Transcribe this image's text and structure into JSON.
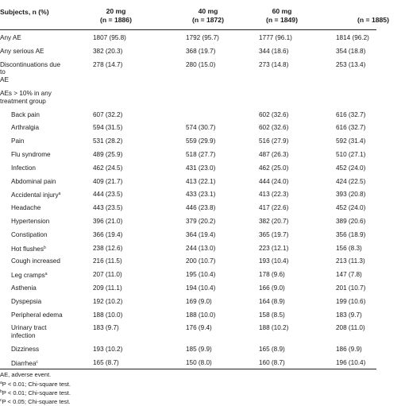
{
  "header": {
    "subjects_label": "Subjects, n (%)",
    "columns": [
      {
        "dose": "20 mg",
        "n": "(n = 1886)"
      },
      {
        "dose": "40 mg",
        "n": "(n = 1872)"
      },
      {
        "dose": "60 mg",
        "n": "(n = 1849)"
      },
      {
        "dose": "",
        "n": "(n = 1885)"
      }
    ]
  },
  "summary_rows": [
    {
      "label": "Any AE",
      "values": [
        "1807 (95.8)",
        "1792 (95.7)",
        "1777 (96.1)",
        "1814 (96.2)"
      ]
    },
    {
      "label": "Any serious AE",
      "values": [
        "382 (20.3)",
        "368 (19.7)",
        "344 (18.6)",
        "354 (18.8)"
      ]
    },
    {
      "label_lines": [
        "Discontinuations due",
        "to",
        "AE"
      ],
      "values": [
        "278 (14.7)",
        "280 (15.0)",
        "273 (14.8)",
        "253 (13.4)"
      ]
    }
  ],
  "section_label_lines": [
    "AEs > 10% in any",
    "treatment group"
  ],
  "ae_rows": [
    {
      "label": "Back pain",
      "values": [
        "607 (32.2)",
        "",
        "602 (32.6)",
        "616 (32.7)"
      ]
    },
    {
      "label": "Arthralgia",
      "values": [
        "594 (31.5)",
        "574 (30.7)",
        "602 (32.6)",
        "616 (32.7)"
      ]
    },
    {
      "label": "Pain",
      "values": [
        "531 (28.2)",
        "559 (29.9)",
        "516 (27.9)",
        "592 (31.4)"
      ]
    },
    {
      "label": "Flu syndrome",
      "values": [
        "489 (25.9)",
        "518 (27.7)",
        "487 (26.3)",
        "510 (27.1)"
      ]
    },
    {
      "label": "Infection",
      "values": [
        "462 (24.5)",
        "431 (23.0)",
        "462 (25.0)",
        "452 (24.0)"
      ]
    },
    {
      "label": "Abdominal pain",
      "values": [
        "409 (21.7)",
        "413 (22.1)",
        "444 (24.0)",
        "424 (22.5)"
      ]
    },
    {
      "label": "Accidental injury",
      "sup": "a",
      "values": [
        "444 (23.5)",
        "433 (23.1)",
        "413 (22.3)",
        "393 (20.8)"
      ]
    },
    {
      "label": "Headache",
      "values": [
        "443 (23.5)",
        "446 (23.8)",
        "417 (22.6)",
        "452 (24.0)"
      ]
    },
    {
      "label": "Hypertension",
      "values": [
        "396 (21.0)",
        "379 (20.2)",
        "382 (20.7)",
        "389 (20.6)"
      ]
    },
    {
      "label": "Constipation",
      "values": [
        "366 (19.4)",
        "364 (19.4)",
        "365 (19.7)",
        "356 (18.9)"
      ]
    },
    {
      "label": "Hot flushes",
      "sup": "b",
      "values": [
        "238 (12.6)",
        "244 (13.0)",
        "223 (12.1)",
        "156 (8.3)"
      ]
    },
    {
      "label": "Cough increased",
      "values": [
        "216 (11.5)",
        "200 (10.7)",
        "193 (10.4)",
        "213 (11.3)"
      ]
    },
    {
      "label": "Leg cramps",
      "sup": "a",
      "values": [
        "207 (11.0)",
        "195 (10.4)",
        "178 (9.6)",
        "147 (7.8)"
      ]
    },
    {
      "label": "Asthenia",
      "values": [
        "209 (11.1)",
        "194 (10.4)",
        "166 (9.0)",
        "201 (10.7)"
      ]
    },
    {
      "label": "Dyspepsia",
      "values": [
        "192 (10.2)",
        "169 (9.0)",
        "164 (8.9)",
        "199 (10.6)"
      ]
    },
    {
      "label": "Peripheral edema",
      "values": [
        "188 (10.0)",
        "188 (10.0)",
        "158 (8.5)",
        "183 (9.7)"
      ]
    },
    {
      "label_lines": [
        "Urinary tract",
        "infection"
      ],
      "values": [
        "183 (9.7)",
        "176 (9.4)",
        "188 (10.2)",
        "208 (11.0)"
      ]
    },
    {
      "label": "Dizziness",
      "values": [
        "193 (10.2)",
        "185 (9.9)",
        "165 (8.9)",
        "186 (9.9)"
      ]
    },
    {
      "label": "Diarrhea",
      "sup": "c",
      "values": [
        "165 (8.7)",
        "150 (8.0)",
        "160 (8.7)",
        "196 (10.4)"
      ]
    }
  ],
  "footnotes": [
    {
      "text": "AE, adverse event."
    },
    {
      "sup": "a",
      "text": "P < 0.01; Chi-square test."
    },
    {
      "sup": "b",
      "text": "P < 0.01; Chi-square test."
    },
    {
      "sup": "c",
      "text": "P < 0.05; Chi-square test."
    }
  ]
}
